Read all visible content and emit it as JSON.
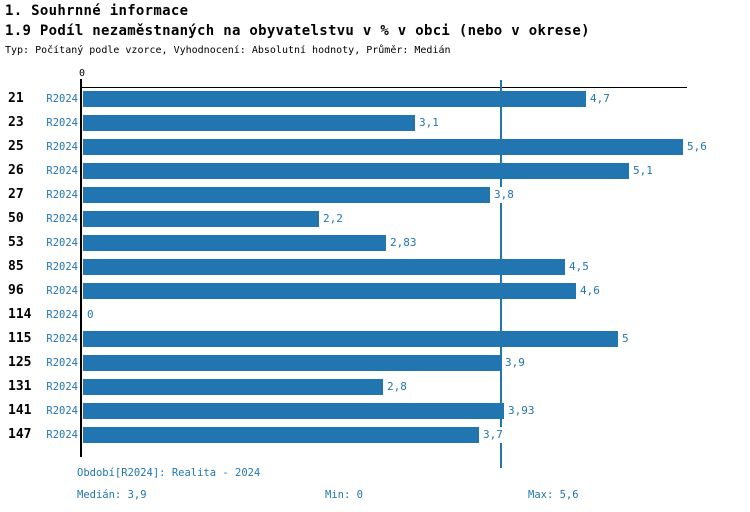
{
  "header": {
    "section_title": "1. Souhrnné informace",
    "chart_title": "1.9 Podíl nezaměstnaných na obyvatelstvu v % v obci (nebo v okrese)",
    "subtitle": "Typ: Počítaný podle vzorce, Vyhodnocení: Absolutní hodnoty, Průměr: Medián"
  },
  "chart_data": {
    "type": "bar",
    "orientation": "horizontal",
    "title": "1.9 Podíl nezaměstnaných na obyvatelstvu v % v obci (nebo v okrese)",
    "categories": [
      "21",
      "23",
      "25",
      "26",
      "27",
      "50",
      "53",
      "85",
      "96",
      "114",
      "115",
      "125",
      "131",
      "141",
      "147"
    ],
    "series_label": "R2024",
    "values": [
      4.7,
      3.1,
      5.6,
      5.1,
      3.8,
      2.2,
      2.83,
      4.5,
      4.6,
      0,
      5,
      3.9,
      2.8,
      3.93,
      3.7
    ],
    "value_labels": [
      "4,7",
      "3,1",
      "5,6",
      "5,1",
      "3,8",
      "2,2",
      "2,83",
      "4,5",
      "4,6",
      "0",
      "5",
      "3,9",
      "2,8",
      "3,93",
      "3,7"
    ],
    "xlim": [
      0,
      5.65
    ],
    "x_tick_labels": [
      "0"
    ],
    "median_line": 3.9,
    "bar_color": "#2176B2",
    "grid": false,
    "legend_position": "none"
  },
  "footer": {
    "period": "Období[R2024]: Realita - 2024",
    "median": "Medián: 3,9",
    "min": "Min: 0",
    "max": "Max: 5,6"
  }
}
